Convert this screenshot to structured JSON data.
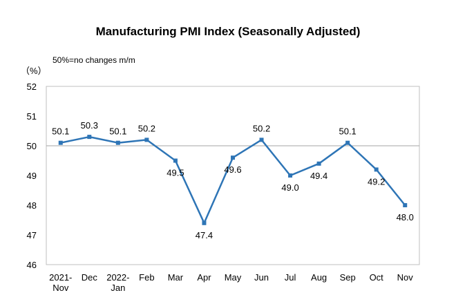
{
  "chart_data": {
    "type": "line",
    "title": "Manufacturing PMI Index (Seasonally Adjusted)",
    "unit_label": "（%）",
    "note": "50%=no changes m/m",
    "categories": [
      [
        "2021-",
        "Nov"
      ],
      [
        "Dec"
      ],
      [
        "2022-",
        "Jan"
      ],
      [
        "Feb"
      ],
      [
        "Mar"
      ],
      [
        "Apr"
      ],
      [
        "May"
      ],
      [
        "Jun"
      ],
      [
        "Jul"
      ],
      [
        "Aug"
      ],
      [
        "Sep"
      ],
      [
        "Oct"
      ],
      [
        "Nov"
      ]
    ],
    "series": [
      {
        "values": [
          50.1,
          50.3,
          50.1,
          50.2,
          49.5,
          47.4,
          49.6,
          50.2,
          49.0,
          49.4,
          50.1,
          49.2,
          48.0
        ],
        "labels": [
          "50.1",
          "50.3",
          "50.1",
          "50.2",
          "49.5",
          "47.4",
          "49.6",
          "50.2",
          "49.0",
          "49.4",
          "50.1",
          "49.2",
          "48.0"
        ],
        "label_positions": [
          "above",
          "above",
          "above",
          "above",
          "below",
          "below",
          "below",
          "above",
          "below",
          "below",
          "above",
          "below",
          "below"
        ],
        "color": "#2E75B6"
      }
    ],
    "ylim": [
      46,
      52
    ],
    "yticks": [
      46,
      47,
      48,
      49,
      50,
      51,
      52
    ],
    "reference_line": 50,
    "grid": false,
    "legend": "none"
  }
}
